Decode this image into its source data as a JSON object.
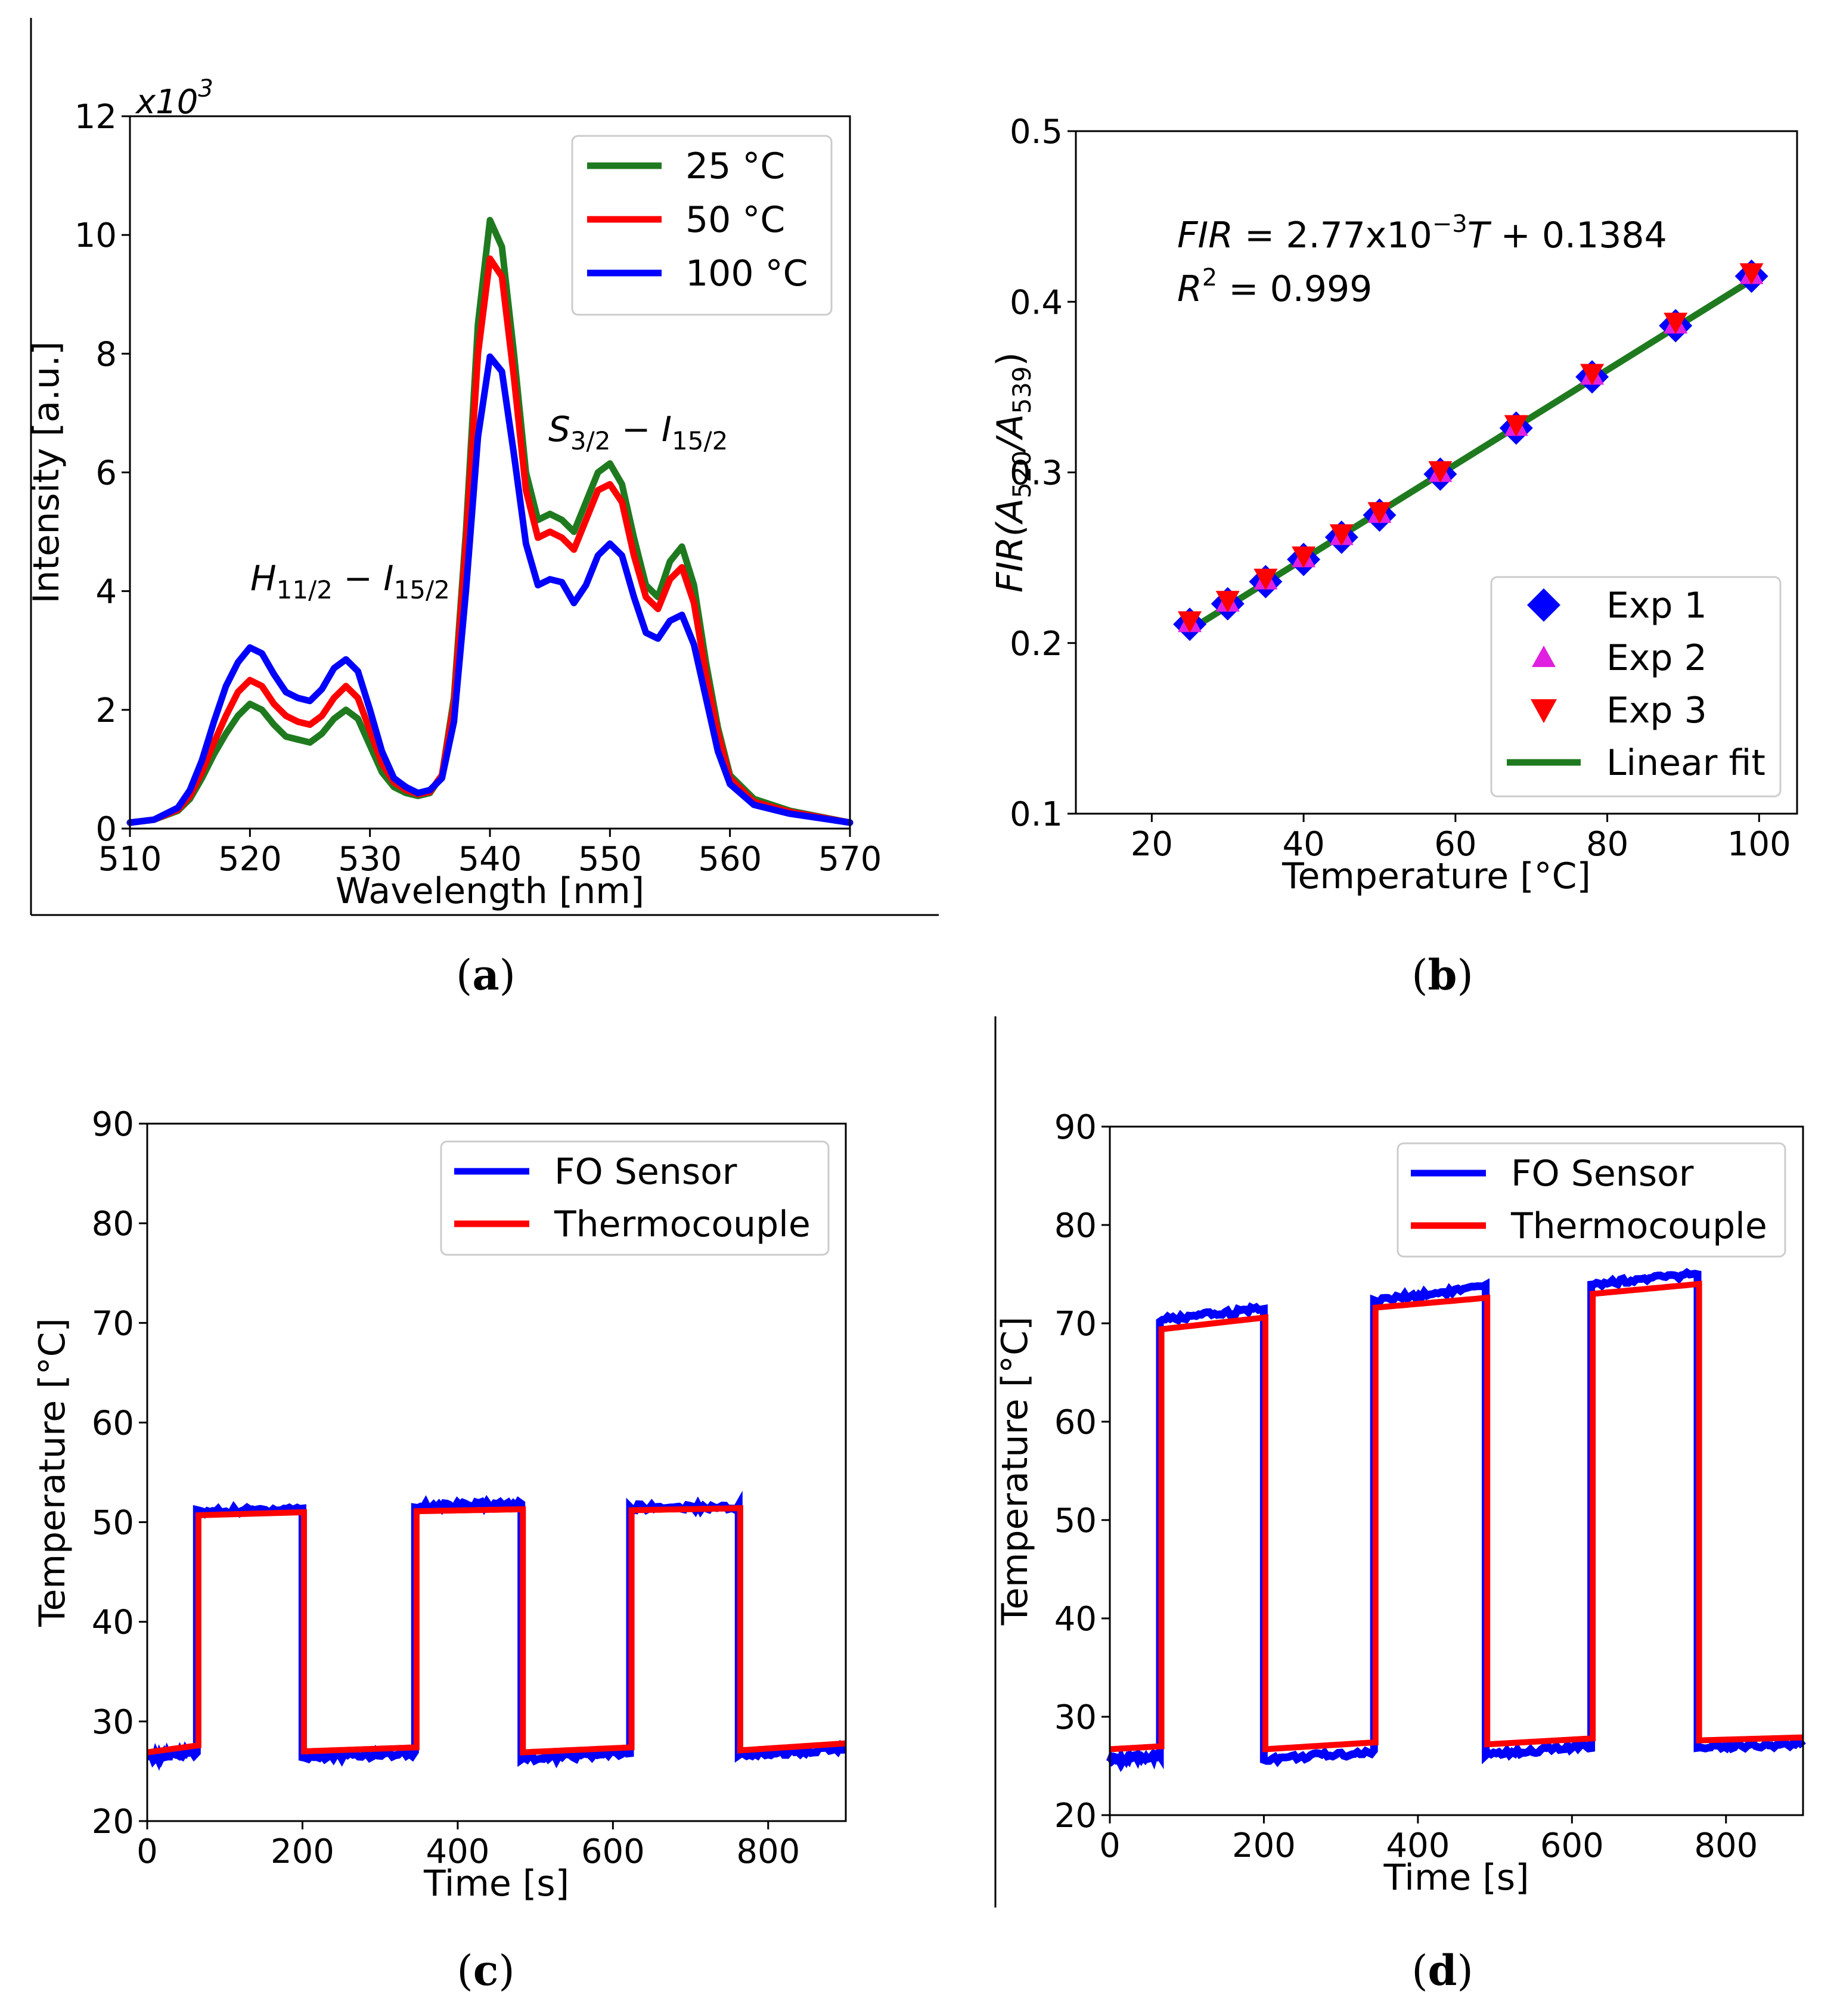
{
  "colors": {
    "green": "#1f7a1f",
    "red": "#ff0000",
    "blue": "#0000ff",
    "magenta": "#e020e0",
    "black": "#000000"
  },
  "chart_data": [
    {
      "id": "a",
      "type": "line",
      "caption": "a",
      "xlabel": "Wavelength [nm]",
      "ylabel": "Intensity [a.u.]",
      "y_scale_label": "x10",
      "y_scale_exp": "3",
      "xlim": [
        510,
        570
      ],
      "ylim": [
        0,
        12
      ],
      "xticks": [
        "510",
        "520",
        "530",
        "540",
        "550",
        "560",
        "570"
      ],
      "yticks": [
        "0",
        "2",
        "4",
        "6",
        "8",
        "10",
        "12"
      ],
      "annotations": [
        {
          "main": "H",
          "sub1": "11/2",
          "mid": " − I",
          "sub2": "15/2"
        },
        {
          "main": "S",
          "sub1": "3/2",
          "mid": " − I",
          "sub2": "15/2"
        }
      ],
      "x": [
        510,
        512,
        514,
        515,
        516,
        517,
        518,
        519,
        520,
        521,
        522,
        523,
        524,
        525,
        526,
        527,
        528,
        529,
        530,
        531,
        532,
        533,
        534,
        535,
        536,
        537,
        538,
        539,
        540,
        541,
        542,
        543,
        544,
        545,
        546,
        547,
        548,
        549,
        550,
        551,
        552,
        553,
        554,
        555,
        556,
        557,
        558,
        559,
        560,
        562,
        565,
        570
      ],
      "series": [
        {
          "name": "25 °C",
          "color": "#1f7a1f",
          "values": [
            0.1,
            0.15,
            0.3,
            0.5,
            0.85,
            1.25,
            1.6,
            1.9,
            2.1,
            2.0,
            1.75,
            1.55,
            1.5,
            1.45,
            1.6,
            1.85,
            2.0,
            1.85,
            1.4,
            0.95,
            0.7,
            0.6,
            0.55,
            0.6,
            0.9,
            2.2,
            5.0,
            8.5,
            10.25,
            9.8,
            8.0,
            6.0,
            5.2,
            5.3,
            5.2,
            5.0,
            5.5,
            6.0,
            6.15,
            5.8,
            4.9,
            4.1,
            3.9,
            4.5,
            4.75,
            4.1,
            2.8,
            1.7,
            0.9,
            0.5,
            0.3,
            0.1
          ]
        },
        {
          "name": "50 °C",
          "color": "#ff0000",
          "values": [
            0.1,
            0.15,
            0.32,
            0.55,
            0.95,
            1.45,
            1.9,
            2.3,
            2.5,
            2.4,
            2.1,
            1.9,
            1.8,
            1.75,
            1.9,
            2.2,
            2.4,
            2.2,
            1.65,
            1.1,
            0.78,
            0.65,
            0.58,
            0.62,
            0.9,
            2.1,
            4.8,
            8.0,
            9.6,
            9.3,
            7.6,
            5.7,
            4.9,
            5.0,
            4.9,
            4.7,
            5.2,
            5.7,
            5.8,
            5.5,
            4.6,
            3.9,
            3.7,
            4.2,
            4.4,
            3.8,
            2.6,
            1.6,
            0.85,
            0.45,
            0.28,
            0.1
          ]
        },
        {
          "name": "100 °C",
          "color": "#0000ff",
          "values": [
            0.1,
            0.15,
            0.35,
            0.65,
            1.15,
            1.8,
            2.4,
            2.8,
            3.05,
            2.95,
            2.6,
            2.3,
            2.2,
            2.15,
            2.35,
            2.7,
            2.85,
            2.65,
            2.0,
            1.3,
            0.85,
            0.7,
            0.6,
            0.65,
            0.85,
            1.8,
            4.0,
            6.6,
            7.95,
            7.7,
            6.3,
            4.8,
            4.1,
            4.2,
            4.15,
            3.8,
            4.1,
            4.6,
            4.8,
            4.6,
            3.9,
            3.3,
            3.2,
            3.5,
            3.6,
            3.1,
            2.2,
            1.3,
            0.75,
            0.4,
            0.25,
            0.1
          ]
        }
      ],
      "legend": {
        "position": "upper-right",
        "entries": [
          "25 °C",
          "50 °C",
          "100 °C"
        ]
      }
    },
    {
      "id": "b",
      "type": "scatter",
      "caption": "b",
      "xlabel": "Temperature [°C]",
      "ylabel_parts": {
        "main": "FIR",
        "open": "(A",
        "sub1": "520",
        "slash": "/A",
        "sub2": "539",
        "close": ")"
      },
      "xlim": [
        10,
        105
      ],
      "ylim": [
        0.1,
        0.5
      ],
      "xticks": [
        "20",
        "40",
        "60",
        "80",
        "100"
      ],
      "yticks": [
        "0.1",
        "0.2",
        "0.3",
        "0.4",
        "0.5"
      ],
      "equation": {
        "lhs": "FIR",
        "eq": " = 2.77x10",
        "exp": "−3",
        "rhs_var": "T",
        "rhs": " + 0.1384"
      },
      "r2": {
        "lhs": "R",
        "exp": "2",
        "rhs": " = 0.999"
      },
      "x": [
        25,
        30,
        35,
        40,
        45,
        50,
        58,
        68,
        78,
        89,
        99
      ],
      "series": [
        {
          "name": "Exp 1",
          "marker": "diamond",
          "color": "#0000ff",
          "values": [
            0.211,
            0.223,
            0.236,
            0.249,
            0.262,
            0.275,
            0.299,
            0.326,
            0.356,
            0.386,
            0.415
          ]
        },
        {
          "name": "Exp 2",
          "marker": "triangle-up",
          "color": "#e020e0",
          "values": [
            0.212,
            0.224,
            0.237,
            0.25,
            0.263,
            0.276,
            0.3,
            0.327,
            0.357,
            0.387,
            0.416
          ]
        },
        {
          "name": "Exp 3",
          "marker": "triangle-down",
          "color": "#ff0000",
          "values": [
            0.213,
            0.225,
            0.238,
            0.251,
            0.264,
            0.277,
            0.301,
            0.328,
            0.358,
            0.388,
            0.417
          ]
        },
        {
          "name": "Linear fit",
          "type": "line",
          "color": "#1f7a1f",
          "x": [
            25,
            100
          ],
          "values": [
            0.2077,
            0.4154
          ]
        }
      ],
      "legend": {
        "position": "lower-right",
        "entries": [
          "Exp 1",
          "Exp 2",
          "Exp 3",
          "Linear fit"
        ]
      }
    },
    {
      "id": "c",
      "type": "line",
      "caption": "c",
      "xlabel": "Time [s]",
      "ylabel": "Temperature [°C]",
      "xlim": [
        0,
        900
      ],
      "ylim": [
        20,
        90
      ],
      "xticks": [
        "0",
        "200",
        "400",
        "600",
        "800"
      ],
      "yticks": [
        "20",
        "30",
        "40",
        "50",
        "60",
        "70",
        "80",
        "90"
      ],
      "series": [
        {
          "name": "FO Sensor",
          "color": "#0000ff",
          "segments": [
            [
              0,
              64,
              26.3,
              27.0
            ],
            [
              64,
              200,
              51.0,
              51.4
            ],
            [
              200,
              345,
              26.4,
              26.8
            ],
            [
              345,
              482,
              51.6,
              51.8
            ],
            [
              482,
              622,
              26.3,
              26.8
            ],
            [
              622,
              762,
              51.5,
              51.5
            ],
            [
              762,
              900,
              26.6,
              27.3
            ]
          ]
        },
        {
          "name": "Thermocouple",
          "color": "#ff0000",
          "segments": [
            [
              0,
              66,
              26.9,
              27.6
            ],
            [
              66,
              202,
              50.7,
              51.0
            ],
            [
              202,
              347,
              27.0,
              27.4
            ],
            [
              347,
              484,
              51.1,
              51.3
            ],
            [
              484,
              624,
              26.9,
              27.4
            ],
            [
              624,
              764,
              51.2,
              51.4
            ],
            [
              764,
              900,
              27.1,
              27.8
            ]
          ]
        }
      ],
      "legend": {
        "position": "upper-right",
        "entries": [
          "FO Sensor",
          "Thermocouple"
        ]
      }
    },
    {
      "id": "d",
      "type": "line",
      "caption": "d",
      "xlabel": "Time [s]",
      "ylabel": "Temperature [°C]",
      "xlim": [
        0,
        900
      ],
      "ylim": [
        20,
        90
      ],
      "xticks": [
        "0",
        "200",
        "400",
        "600",
        "800"
      ],
      "yticks": [
        "20",
        "30",
        "40",
        "50",
        "60",
        "70",
        "80",
        "90"
      ],
      "series": [
        {
          "name": "FO Sensor",
          "color": "#0000ff",
          "segments": [
            [
              0,
              65,
              25.6,
              26.0
            ],
            [
              65,
              200,
              70.3,
              71.5
            ],
            [
              200,
              343,
              25.7,
              26.4
            ],
            [
              343,
              488,
              72.3,
              73.7
            ],
            [
              488,
              625,
              26.2,
              27.0
            ],
            [
              625,
              763,
              74.0,
              75.0
            ],
            [
              763,
              900,
              27.0,
              27.2
            ]
          ]
        },
        {
          "name": "Thermocouple",
          "color": "#ff0000",
          "segments": [
            [
              0,
              67,
              26.7,
              27.0
            ],
            [
              67,
              202,
              69.4,
              70.6
            ],
            [
              202,
              345,
              26.7,
              27.4
            ],
            [
              345,
              490,
              71.6,
              72.6
            ],
            [
              490,
              627,
              27.2,
              27.8
            ],
            [
              627,
              765,
              73.0,
              74.0
            ],
            [
              765,
              900,
              27.6,
              27.9
            ]
          ]
        }
      ],
      "legend": {
        "position": "upper-right",
        "entries": [
          "FO Sensor",
          "Thermocouple"
        ]
      }
    }
  ]
}
